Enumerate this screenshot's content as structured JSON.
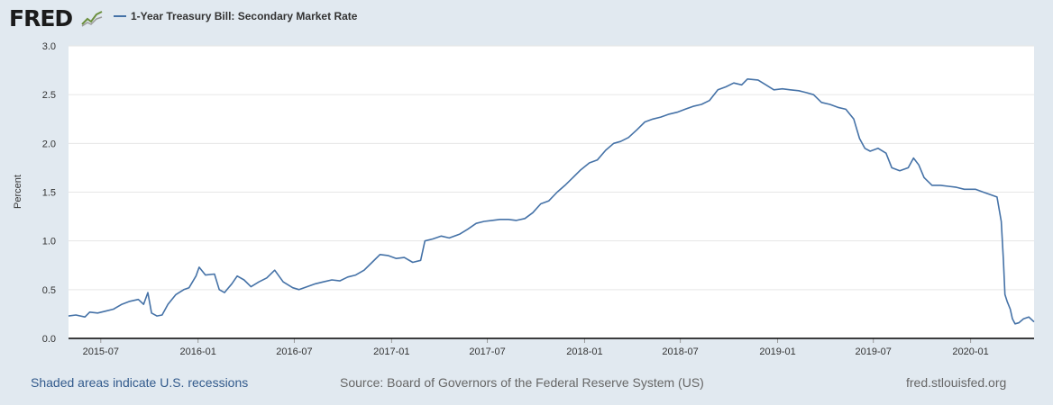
{
  "header": {
    "logo_text": "FRED",
    "logo_icon": "trend-graph-icon",
    "series_color": "#4572a7"
  },
  "footer": {
    "left": "Shaded areas indicate U.S. recessions",
    "center": "Source: Board of Governors of the Federal Reserve System (US)",
    "right": "fred.stlouisfed.org"
  },
  "chart_data": {
    "type": "line",
    "title": "",
    "xlabel": "",
    "ylabel": "Percent",
    "xlim": [
      "2015-05-01",
      "2020-04-30"
    ],
    "ylim": [
      0,
      3.0
    ],
    "yticks": [
      0.0,
      0.5,
      1.0,
      1.5,
      2.0,
      2.5,
      3.0
    ],
    "ytick_labels": [
      "0.0",
      "0.5",
      "1.0",
      "1.5",
      "2.0",
      "2.5",
      "3.0"
    ],
    "xticks": [
      "2015-07-01",
      "2016-01-01",
      "2016-07-01",
      "2017-01-01",
      "2017-07-01",
      "2018-01-01",
      "2018-07-01",
      "2019-01-01",
      "2019-07-01",
      "2020-01-01"
    ],
    "xtick_labels": [
      "2015-07",
      "2016-01",
      "2016-07",
      "2017-01",
      "2017-07",
      "2018-01",
      "2018-07",
      "2019-01",
      "2019-07",
      "2020-01"
    ],
    "grid": "horizontal",
    "series": [
      {
        "name": "1-Year Treasury Bill: Secondary Market Rate",
        "color": "#4572a7",
        "points": [
          [
            "2015-05-01",
            0.23
          ],
          [
            "2015-05-15",
            0.24
          ],
          [
            "2015-06-01",
            0.22
          ],
          [
            "2015-06-10",
            0.27
          ],
          [
            "2015-06-25",
            0.26
          ],
          [
            "2015-07-10",
            0.28
          ],
          [
            "2015-07-25",
            0.3
          ],
          [
            "2015-08-10",
            0.35
          ],
          [
            "2015-08-25",
            0.38
          ],
          [
            "2015-09-10",
            0.4
          ],
          [
            "2015-09-20",
            0.35
          ],
          [
            "2015-09-28",
            0.47
          ],
          [
            "2015-10-05",
            0.26
          ],
          [
            "2015-10-15",
            0.23
          ],
          [
            "2015-10-25",
            0.24
          ],
          [
            "2015-11-05",
            0.35
          ],
          [
            "2015-11-20",
            0.45
          ],
          [
            "2015-12-05",
            0.5
          ],
          [
            "2015-12-15",
            0.52
          ],
          [
            "2015-12-28",
            0.64
          ],
          [
            "2016-01-03",
            0.73
          ],
          [
            "2016-01-15",
            0.65
          ],
          [
            "2016-02-01",
            0.66
          ],
          [
            "2016-02-10",
            0.5
          ],
          [
            "2016-02-20",
            0.47
          ],
          [
            "2016-03-05",
            0.56
          ],
          [
            "2016-03-15",
            0.64
          ],
          [
            "2016-03-28",
            0.6
          ],
          [
            "2016-04-10",
            0.53
          ],
          [
            "2016-04-25",
            0.58
          ],
          [
            "2016-05-10",
            0.62
          ],
          [
            "2016-05-25",
            0.7
          ],
          [
            "2016-06-10",
            0.58
          ],
          [
            "2016-06-28",
            0.52
          ],
          [
            "2016-07-10",
            0.5
          ],
          [
            "2016-07-25",
            0.53
          ],
          [
            "2016-08-10",
            0.56
          ],
          [
            "2016-08-25",
            0.58
          ],
          [
            "2016-09-10",
            0.6
          ],
          [
            "2016-09-25",
            0.59
          ],
          [
            "2016-10-10",
            0.63
          ],
          [
            "2016-10-25",
            0.65
          ],
          [
            "2016-11-10",
            0.7
          ],
          [
            "2016-11-25",
            0.78
          ],
          [
            "2016-12-10",
            0.86
          ],
          [
            "2016-12-25",
            0.85
          ],
          [
            "2017-01-10",
            0.82
          ],
          [
            "2017-01-25",
            0.83
          ],
          [
            "2017-02-10",
            0.78
          ],
          [
            "2017-02-25",
            0.8
          ],
          [
            "2017-03-05",
            1.0
          ],
          [
            "2017-03-20",
            1.02
          ],
          [
            "2017-04-05",
            1.05
          ],
          [
            "2017-04-20",
            1.03
          ],
          [
            "2017-05-10",
            1.07
          ],
          [
            "2017-05-25",
            1.12
          ],
          [
            "2017-06-10",
            1.18
          ],
          [
            "2017-06-25",
            1.2
          ],
          [
            "2017-07-10",
            1.21
          ],
          [
            "2017-07-25",
            1.22
          ],
          [
            "2017-08-10",
            1.22
          ],
          [
            "2017-08-25",
            1.21
          ],
          [
            "2017-09-10",
            1.23
          ],
          [
            "2017-09-25",
            1.29
          ],
          [
            "2017-10-10",
            1.38
          ],
          [
            "2017-10-25",
            1.41
          ],
          [
            "2017-11-10",
            1.5
          ],
          [
            "2017-11-25",
            1.57
          ],
          [
            "2017-12-10",
            1.65
          ],
          [
            "2017-12-25",
            1.73
          ],
          [
            "2018-01-10",
            1.8
          ],
          [
            "2018-01-25",
            1.83
          ],
          [
            "2018-02-10",
            1.93
          ],
          [
            "2018-02-25",
            2.0
          ],
          [
            "2018-03-10",
            2.02
          ],
          [
            "2018-03-25",
            2.06
          ],
          [
            "2018-04-10",
            2.14
          ],
          [
            "2018-04-25",
            2.22
          ],
          [
            "2018-05-10",
            2.25
          ],
          [
            "2018-05-25",
            2.27
          ],
          [
            "2018-06-10",
            2.3
          ],
          [
            "2018-06-25",
            2.32
          ],
          [
            "2018-07-10",
            2.35
          ],
          [
            "2018-07-25",
            2.38
          ],
          [
            "2018-08-10",
            2.4
          ],
          [
            "2018-08-25",
            2.44
          ],
          [
            "2018-09-10",
            2.55
          ],
          [
            "2018-09-25",
            2.58
          ],
          [
            "2018-10-10",
            2.62
          ],
          [
            "2018-10-25",
            2.6
          ],
          [
            "2018-11-05",
            2.66
          ],
          [
            "2018-11-25",
            2.65
          ],
          [
            "2018-12-10",
            2.6
          ],
          [
            "2018-12-25",
            2.55
          ],
          [
            "2019-01-10",
            2.56
          ],
          [
            "2019-01-25",
            2.55
          ],
          [
            "2019-02-10",
            2.54
          ],
          [
            "2019-02-25",
            2.52
          ],
          [
            "2019-03-10",
            2.5
          ],
          [
            "2019-03-25",
            2.42
          ],
          [
            "2019-04-10",
            2.4
          ],
          [
            "2019-04-25",
            2.37
          ],
          [
            "2019-05-10",
            2.35
          ],
          [
            "2019-05-25",
            2.25
          ],
          [
            "2019-06-05",
            2.05
          ],
          [
            "2019-06-15",
            1.95
          ],
          [
            "2019-06-25",
            1.92
          ],
          [
            "2019-07-10",
            1.95
          ],
          [
            "2019-07-25",
            1.9
          ],
          [
            "2019-08-05",
            1.75
          ],
          [
            "2019-08-20",
            1.72
          ],
          [
            "2019-09-05",
            1.75
          ],
          [
            "2019-09-15",
            1.85
          ],
          [
            "2019-09-25",
            1.78
          ],
          [
            "2019-10-05",
            1.65
          ],
          [
            "2019-10-20",
            1.57
          ],
          [
            "2019-11-05",
            1.57
          ],
          [
            "2019-11-20",
            1.56
          ],
          [
            "2019-12-05",
            1.55
          ],
          [
            "2019-12-20",
            1.53
          ],
          [
            "2020-01-10",
            1.53
          ],
          [
            "2020-01-25",
            1.5
          ],
          [
            "2020-02-05",
            1.48
          ],
          [
            "2020-02-20",
            1.45
          ],
          [
            "2020-02-28",
            1.2
          ],
          [
            "2020-03-03",
            0.8
          ],
          [
            "2020-03-06",
            0.45
          ],
          [
            "2020-03-10",
            0.38
          ],
          [
            "2020-03-16",
            0.3
          ],
          [
            "2020-03-20",
            0.2
          ],
          [
            "2020-03-25",
            0.15
          ],
          [
            "2020-04-01",
            0.16
          ],
          [
            "2020-04-10",
            0.2
          ],
          [
            "2020-04-20",
            0.22
          ],
          [
            "2020-04-30",
            0.17
          ]
        ]
      }
    ]
  }
}
